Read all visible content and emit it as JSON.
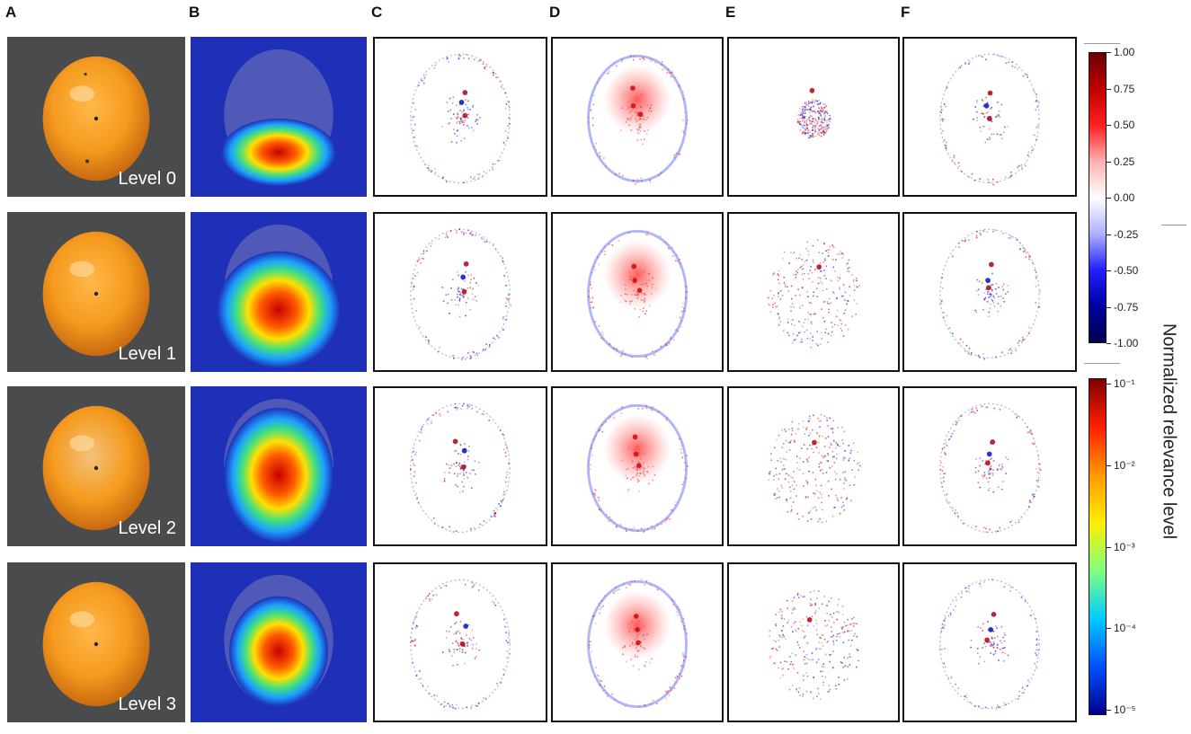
{
  "columns": [
    "A",
    "B",
    "C",
    "D",
    "E",
    "F"
  ],
  "rows": [
    "Level 0",
    "Level 1",
    "Level 2",
    "Level 3"
  ],
  "colorbar_top": {
    "ticks": [
      "1.00",
      "0.75",
      "0.50",
      "0.25",
      "0.00",
      "-0.25",
      "-0.50",
      "-0.75",
      "-1.00"
    ],
    "colors": [
      "#6b0000",
      "#c00000",
      "#ff2020",
      "#ffb0b0",
      "#ffffff",
      "#b0b0ff",
      "#2020ff",
      "#0000a0",
      "#000050"
    ]
  },
  "colorbar_bottom": {
    "ticks": [
      "10⁻¹",
      "10⁻²",
      "10⁻³",
      "10⁻⁴",
      "10⁻⁵"
    ],
    "colors": [
      "#7f0000",
      "#ff2000",
      "#ff9900",
      "#ffee00",
      "#80ff80",
      "#00ccff",
      "#0050ff",
      "#00008f"
    ]
  },
  "axis_title": "Normalized relevance level"
}
